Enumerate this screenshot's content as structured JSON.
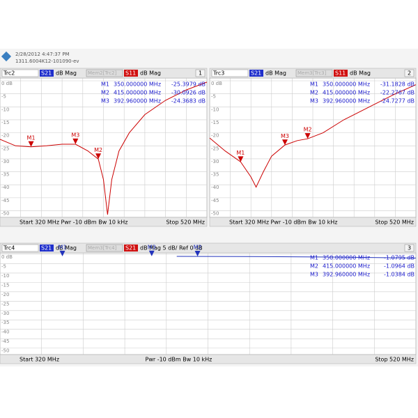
{
  "header": {
    "timestamp": "2/28/2012 4:47:37 PM",
    "serial": "1311.6004K12-101090-ev"
  },
  "chart_data": [
    {
      "type": "line",
      "trace_label": "Trc2",
      "meas": "S21",
      "format": "dB Mag",
      "memory_label": "Mem2[Trc2]",
      "memory_meas": "S11",
      "memory_format": "dB Mag",
      "channel": "1",
      "footer_left": "Start 320 MHz  Pwr -10 dBm  Bw 10 kHz",
      "footer_right": "Stop 520 MHz",
      "color": "#cc0000",
      "xlim": [
        320,
        520
      ],
      "ylim": [
        -52,
        0
      ],
      "yticks": [
        {
          "value": 0,
          "label": "0 dB"
        },
        -5,
        -10,
        -15,
        -20,
        -25,
        -30,
        -35,
        -40,
        -45,
        -50
      ],
      "x": [
        320,
        335,
        350,
        365,
        380,
        393,
        405,
        415,
        420,
        424,
        428,
        435,
        445,
        460,
        480,
        500,
        520
      ],
      "values": [
        -22.5,
        -25,
        -25.4,
        -25,
        -24.4,
        -24.4,
        -27,
        -30.1,
        -38,
        -51.5,
        -38,
        -27,
        -20,
        -13,
        -7.5,
        -3.5,
        -0.5
      ],
      "markers": [
        {
          "label": "M1",
          "x": 350,
          "y": -25.3979,
          "x_label": "350.000000  MHz",
          "y_label": "-25.3979 dB"
        },
        {
          "label": "M2",
          "x": 415,
          "y": -30.0926,
          "x_label": "415.000000  MHz",
          "y_label": "-30.0926 dB"
        },
        {
          "label": "M3",
          "x": 392.96,
          "y": -24.3683,
          "x_label": "392.960000  MHz",
          "y_label": "-24.3683 dB"
        }
      ]
    },
    {
      "type": "line",
      "trace_label": "Trc3",
      "meas": "S21",
      "format": "dB Mag",
      "memory_label": "Mem3[Trc3]",
      "memory_meas": "S11",
      "memory_format": "dB Mag",
      "channel": "2",
      "footer_left": "Start 320 MHz  Pwr -10 dBm  Bw 10 kHz",
      "footer_right": "Stop 520 MHz",
      "color": "#cc0000",
      "xlim": [
        320,
        520
      ],
      "ylim": [
        -52,
        0
      ],
      "yticks": [
        {
          "value": 0,
          "label": "0 dB"
        },
        -5,
        -10,
        -15,
        -20,
        -25,
        -30,
        -35,
        -40,
        -45,
        -50
      ],
      "x": [
        320,
        335,
        350,
        360,
        365,
        372,
        380,
        393,
        405,
        415,
        430,
        450,
        480,
        500,
        520
      ],
      "values": [
        -22,
        -27,
        -31.2,
        -37,
        -40.9,
        -35,
        -29,
        -24.7,
        -23,
        -22.3,
        -20,
        -15,
        -9,
        -5,
        -1.5
      ],
      "markers": [
        {
          "label": "M1",
          "x": 350,
          "y": -31.1828,
          "x_label": "350.000000  MHz",
          "y_label": "-31.1828 dB"
        },
        {
          "label": "M2",
          "x": 415,
          "y": -22.2767,
          "x_label": "415.000000  MHz",
          "y_label": "-22.2767 dB"
        },
        {
          "label": "M3",
          "x": 392.96,
          "y": -24.7277,
          "x_label": "392.960000  MHz",
          "y_label": "-24.7277 dB"
        }
      ]
    },
    {
      "type": "line",
      "trace_label": "Trc4",
      "meas": "S21",
      "format": "dB Mag",
      "memory_label": "Mem3[Trc4]",
      "memory_meas": "S21",
      "memory_format": "dB Mag  5 dB/ Ref 0 dB",
      "channel": "3",
      "footer_left": "Start 320 MHz",
      "footer_mid": "Pwr -10 dBm  Bw 10 kHz",
      "footer_right": "Stop 520 MHz",
      "color": "#2233bb",
      "xlim": [
        320,
        520
      ],
      "ylim": [
        -52,
        0
      ],
      "yticks": [
        {
          "value": 0,
          "label": "0 dB"
        },
        -5,
        -10,
        -15,
        -20,
        -25,
        -30,
        -35,
        -40,
        -45,
        -50
      ],
      "x": [
        405,
        440,
        480,
        520
      ],
      "values": [
        -1.1,
        -1.2,
        -1.5,
        -2
      ],
      "markers": [
        {
          "label": "M1",
          "x": 350,
          "y": -1.0795,
          "x_label": "350.000000  MHz",
          "y_label": "-1.0795 dB"
        },
        {
          "label": "M2",
          "x": 415,
          "y": -1.0964,
          "x_label": "415.000000  MHz",
          "y_label": "-1.0964 dB"
        },
        {
          "label": "M3",
          "x": 392.96,
          "y": -1.0384,
          "x_label": "392.960000  MHz",
          "y_label": "-1.0384 dB"
        }
      ]
    }
  ]
}
